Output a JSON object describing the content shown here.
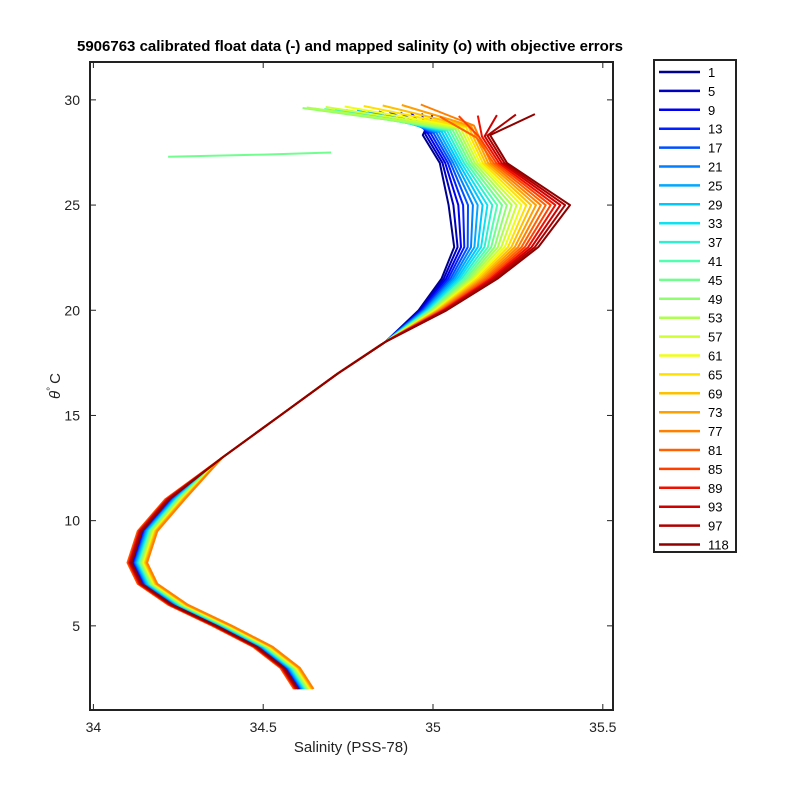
{
  "chart_data": {
    "type": "line",
    "title": "5906763 calibrated float data (-) and mapped salinity (o) with objective errors",
    "xlabel": "Salinity (PSS-78)",
    "ylabel_symbol": "θ",
    "ylabel_unit": "C",
    "xlim": [
      33.99,
      35.53
    ],
    "ylim": [
      1.0,
      31.8
    ],
    "xticks": [
      34,
      34.5,
      35,
      35.5
    ],
    "xtick_labels": [
      "34",
      "34.5",
      "35",
      "35.5"
    ],
    "yticks": [
      5,
      10,
      15,
      20,
      25,
      30
    ],
    "ytick_labels": [
      "5",
      "10",
      "15",
      "20",
      "25",
      "30"
    ],
    "grid": false,
    "legend_position": "outside-right",
    "colormap": "jet",
    "legend": [
      {
        "label": "1",
        "color": "#00008f"
      },
      {
        "label": "5",
        "color": "#0000bf"
      },
      {
        "label": "9",
        "color": "#0000ef"
      },
      {
        "label": "13",
        "color": "#0020ff"
      },
      {
        "label": "17",
        "color": "#0050ff"
      },
      {
        "label": "21",
        "color": "#0080ff"
      },
      {
        "label": "25",
        "color": "#00a8ff"
      },
      {
        "label": "29",
        "color": "#00c8ff"
      },
      {
        "label": "33",
        "color": "#10e0ef"
      },
      {
        "label": "37",
        "color": "#30efcf"
      },
      {
        "label": "41",
        "color": "#50ffaf"
      },
      {
        "label": "45",
        "color": "#70ff8f"
      },
      {
        "label": "49",
        "color": "#90ff6f"
      },
      {
        "label": "53",
        "color": "#afff50"
      },
      {
        "label": "57",
        "color": "#cfff30"
      },
      {
        "label": "61",
        "color": "#efff10"
      },
      {
        "label": "65",
        "color": "#ffe000"
      },
      {
        "label": "69",
        "color": "#ffc000"
      },
      {
        "label": "73",
        "color": "#ff9f00"
      },
      {
        "label": "77",
        "color": "#ff8000"
      },
      {
        "label": "81",
        "color": "#ff6000"
      },
      {
        "label": "85",
        "color": "#ff3f00"
      },
      {
        "label": "89",
        "color": "#ef1000"
      },
      {
        "label": "93",
        "color": "#cf0000"
      },
      {
        "label": "97",
        "color": "#af0000"
      },
      {
        "label": "118",
        "color": "#8f0000"
      }
    ],
    "profile_shape": {
      "salinity": [
        34.62,
        34.58,
        34.5,
        34.38,
        34.25,
        34.16,
        34.13,
        34.16,
        34.24,
        34.38,
        34.55,
        34.72,
        34.86,
        34.97,
        35.05,
        35.1,
        35.1,
        35.05,
        35.0,
        34.95
      ],
      "theta": [
        2.0,
        3.0,
        4.0,
        5.0,
        6.0,
        7.0,
        8.0,
        9.5,
        11.0,
        13.0,
        15.0,
        17.0,
        18.5,
        20.0,
        21.5,
        23.0,
        25.0,
        27.0,
        28.5,
        29.5
      ]
    },
    "surface_end_salinity": {
      "first": 35.0,
      "middle": 34.6,
      "last": 35.3
    },
    "salinity_max_near_23C": {
      "first": 35.05,
      "last": 35.38
    },
    "outlier_profile": {
      "label_index": 45,
      "salinity": [
        34.7,
        34.5,
        34.22
      ],
      "theta": [
        27.5,
        27.4,
        27.3
      ]
    }
  }
}
